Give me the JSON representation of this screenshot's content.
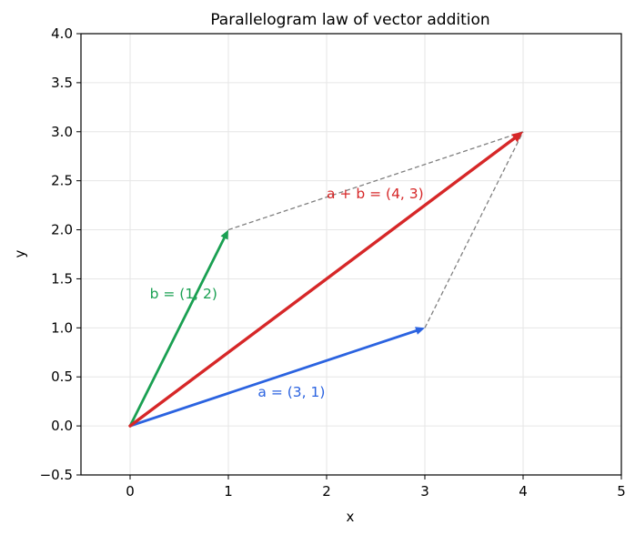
{
  "chart_data": {
    "type": "line",
    "title": "Parallelogram law of vector addition",
    "xlabel": "x",
    "ylabel": "y",
    "xlim": [
      -0.5,
      5
    ],
    "ylim": [
      -0.5,
      4.0
    ],
    "grid": true,
    "x_ticks": [
      0,
      1,
      2,
      3,
      4,
      5
    ],
    "y_ticks": [
      -0.5,
      0.0,
      0.5,
      1.0,
      1.5,
      2.0,
      2.5,
      3.0,
      3.5,
      4.0
    ],
    "x_tick_labels": [
      "0",
      "1",
      "2",
      "3",
      "4",
      "5"
    ],
    "y_tick_labels": [
      "−0.5",
      "0.0",
      "0.5",
      "1.0",
      "1.5",
      "2.0",
      "2.5",
      "3.0",
      "3.5",
      "4.0"
    ],
    "vectors": [
      {
        "id": "a",
        "from": [
          0,
          0
        ],
        "to": [
          3,
          1
        ],
        "color": "#2b63e0",
        "label": "a = (3, 1)",
        "label_at": [
          1.3,
          0.3
        ]
      },
      {
        "id": "b",
        "from": [
          0,
          0
        ],
        "to": [
          1,
          2
        ],
        "color": "#1aa052",
        "label": "b = (1, 2)",
        "label_at": [
          0.2,
          1.3
        ]
      },
      {
        "id": "sum",
        "from": [
          0,
          0
        ],
        "to": [
          4,
          3
        ],
        "color": "#d62728",
        "label": "a + b = (4, 3)",
        "label_at": [
          2.0,
          2.32
        ]
      }
    ],
    "construction_lines": [
      {
        "from": [
          1,
          2
        ],
        "to": [
          4,
          3
        ],
        "color": "#808080",
        "style": "dashed"
      },
      {
        "from": [
          3,
          1
        ],
        "to": [
          4,
          3
        ],
        "color": "#808080",
        "style": "dashed"
      }
    ]
  }
}
